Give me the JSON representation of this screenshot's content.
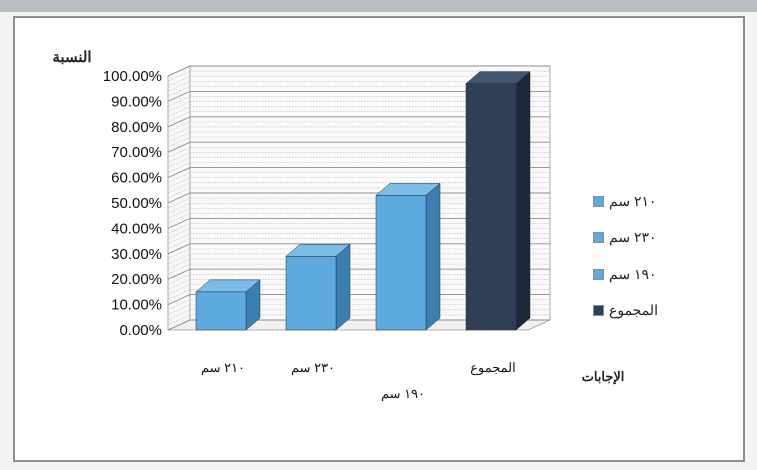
{
  "chart_data": {
    "type": "bar",
    "title": "",
    "ylabel": "النسبة",
    "xlabel": "الإجابات",
    "categories": [
      "٢١٠ سم",
      "٢٣٠ سم",
      "١٩٠ سم",
      "المجموع"
    ],
    "values": [
      15,
      29,
      53,
      97
    ],
    "ylim": [
      0,
      100
    ],
    "yticks": [
      "0.00%",
      "10.00%",
      "20.00%",
      "30.00%",
      "40.00%",
      "50.00%",
      "60.00%",
      "70.00%",
      "80.00%",
      "90.00%",
      "100.00%"
    ],
    "legend": {
      "position": "right",
      "entries": [
        "٢١٠ سم",
        "٢٣٠ سم",
        "١٩٠ سم",
        "المجموع"
      ]
    },
    "colors": {
      "bar_front": [
        "#5ea9dd",
        "#5ea9dd",
        "#5ea9dd",
        "#2f3f56"
      ],
      "bar_side": [
        "#3b7fb1",
        "#3b7fb1",
        "#3b7fb1",
        "#1c2738"
      ],
      "bar_top": [
        "#7cbde6",
        "#7cbde6",
        "#7cbde6",
        "#425570"
      ],
      "legend_swatch": [
        "#5ea9dd",
        "#5ea9dd",
        "#5ea9dd",
        "#2f3f56"
      ]
    },
    "grid": true,
    "projection": "3d-column"
  }
}
